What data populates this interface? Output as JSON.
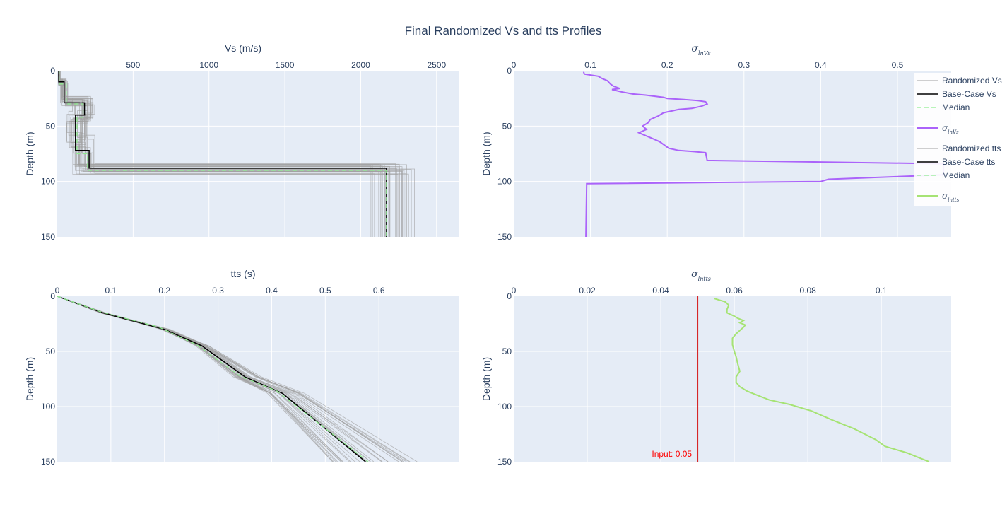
{
  "title": "Final Randomized Vs and tts Profiles",
  "colors": {
    "plot_bg": "#e5ecf6",
    "grid": "#ffffff",
    "randomized": "#a0a0a0",
    "base_case": "#000000",
    "median": "#90ee90",
    "sigma_vs": "#ab63fa",
    "sigma_tts": "#a6e374",
    "input_line": "#d62728"
  },
  "legend": {
    "items": [
      {
        "label": "Randomized Vs",
        "style": "thin-gray"
      },
      {
        "label": "Base-Case Vs",
        "style": "black"
      },
      {
        "label": "Median",
        "style": "dash-green"
      },
      {
        "label": "σ",
        "sub": "lnVs",
        "style": "purple"
      },
      {
        "label": "Randomized tts",
        "style": "thin-gray"
      },
      {
        "label": "Base-Case tts",
        "style": "black"
      },
      {
        "label": "Median",
        "style": "dash-green"
      },
      {
        "label": "σ",
        "sub": "lntts",
        "style": "green"
      }
    ]
  },
  "chart_data": [
    {
      "type": "line",
      "name": "vs_profiles",
      "xlabel": "Vs (m/s)",
      "ylabel": "Depth (m)",
      "xlim": [
        0,
        2650
      ],
      "ylim": [
        150,
        0
      ],
      "y_tick_values": [
        0,
        50,
        100,
        150
      ],
      "y_tick_labels": [
        "0",
        "50",
        "100",
        "150"
      ],
      "x_tick_values": [
        500,
        1000,
        1500,
        2000,
        2500
      ],
      "x_tick_labels": [
        "500",
        "1000",
        "1500",
        "2000",
        "2500"
      ],
      "axis_label_position": "top",
      "randomized_count": 30,
      "series": [
        {
          "name": "Base-Case Vs",
          "style": "step",
          "points": [
            [
              5,
              0
            ],
            [
              10,
              0
            ],
            [
              10,
              10
            ],
            [
              45,
              10
            ],
            [
              45,
              29
            ],
            [
              180,
              29
            ],
            [
              180,
              40
            ],
            [
              120,
              40
            ],
            [
              120,
              72
            ],
            [
              210,
              72
            ],
            [
              210,
              88
            ],
            [
              2170,
              88
            ],
            [
              2170,
              150
            ]
          ]
        },
        {
          "name": "Median",
          "style": "step",
          "points": [
            [
              5,
              0
            ],
            [
              12,
              0
            ],
            [
              12,
              12
            ],
            [
              60,
              12
            ],
            [
              60,
              30
            ],
            [
              170,
              30
            ],
            [
              170,
              42
            ],
            [
              130,
              42
            ],
            [
              130,
              75
            ],
            [
              200,
              75
            ],
            [
              200,
              90
            ],
            [
              2170,
              90
            ],
            [
              2170,
              150
            ]
          ]
        }
      ]
    },
    {
      "type": "line",
      "name": "sigma_ln_vs",
      "xlabel": "σ",
      "xlabel_sub": "lnVs",
      "ylabel": "Depth (m)",
      "xlim": [
        0,
        0.57
      ],
      "ylim": [
        150,
        0
      ],
      "y_tick_values": [
        0,
        50,
        100,
        150
      ],
      "y_tick_labels": [
        "0",
        "50",
        "100",
        "150"
      ],
      "x_tick_values": [
        0,
        0.1,
        0.2,
        0.3,
        0.4,
        0.5
      ],
      "x_tick_labels": [
        "0",
        "0.1",
        "0.2",
        "0.3",
        "0.4",
        "0.5"
      ],
      "series": [
        {
          "name": "σlnVs",
          "points": [
            [
              0.091,
              1
            ],
            [
              0.092,
              3
            ],
            [
              0.11,
              5
            ],
            [
              0.115,
              7
            ],
            [
              0.122,
              9
            ],
            [
              0.126,
              12
            ],
            [
              0.13,
              14
            ],
            [
              0.138,
              16
            ],
            [
              0.128,
              17
            ],
            [
              0.14,
              19
            ],
            [
              0.155,
              21
            ],
            [
              0.172,
              22
            ],
            [
              0.195,
              24
            ],
            [
              0.2,
              25
            ],
            [
              0.222,
              26
            ],
            [
              0.24,
              27
            ],
            [
              0.25,
              28
            ],
            [
              0.252,
              30
            ],
            [
              0.245,
              32
            ],
            [
              0.232,
              34
            ],
            [
              0.215,
              35
            ],
            [
              0.195,
              38
            ],
            [
              0.188,
              41
            ],
            [
              0.178,
              44
            ],
            [
              0.175,
              47
            ],
            [
              0.168,
              50
            ],
            [
              0.173,
              53
            ],
            [
              0.163,
              56
            ],
            [
              0.17,
              58
            ],
            [
              0.18,
              61
            ],
            [
              0.19,
              64
            ],
            [
              0.198,
              68
            ],
            [
              0.202,
              70
            ],
            [
              0.215,
              72
            ],
            [
              0.235,
              73
            ],
            [
              0.25,
              74
            ],
            [
              0.252,
              81
            ],
            [
              0.56,
              84
            ],
            [
              0.56,
              94
            ],
            [
              0.41,
              98
            ],
            [
              0.4,
              100
            ],
            [
              0.095,
              102
            ],
            [
              0.094,
              150
            ]
          ]
        }
      ]
    },
    {
      "type": "line",
      "name": "tts_profiles",
      "xlabel": "tts (s)",
      "ylabel": "Depth (m)",
      "xlim": [
        0,
        0.75
      ],
      "ylim": [
        150,
        0
      ],
      "y_tick_values": [
        0,
        50,
        100,
        150
      ],
      "y_tick_labels": [
        "0",
        "50",
        "100",
        "150"
      ],
      "x_tick_values": [
        0,
        0.1,
        0.2,
        0.3,
        0.4,
        0.5,
        0.6
      ],
      "x_tick_labels": [
        "0",
        "0.1",
        "0.2",
        "0.3",
        "0.4",
        "0.5",
        "0.6"
      ],
      "axis_label_position": "top",
      "randomized_count": 30,
      "series": [
        {
          "name": "Base-Case tts",
          "points": [
            [
              0,
              0
            ],
            [
              0.085,
              15
            ],
            [
              0.2,
              30
            ],
            [
              0.27,
              45
            ],
            [
              0.35,
              73
            ],
            [
              0.42,
              88
            ],
            [
              0.575,
              150
            ]
          ]
        },
        {
          "name": "Median",
          "points": [
            [
              0,
              0
            ],
            [
              0.08,
              14
            ],
            [
              0.19,
              28
            ],
            [
              0.26,
              44
            ],
            [
              0.34,
              72
            ],
            [
              0.41,
              86
            ],
            [
              0.58,
              150
            ]
          ]
        }
      ]
    },
    {
      "type": "line",
      "name": "sigma_ln_tts",
      "xlabel": "σ",
      "xlabel_sub": "lntts",
      "ylabel": "Depth (m)",
      "xlim": [
        0,
        0.119
      ],
      "ylim": [
        150,
        0
      ],
      "y_tick_values": [
        0,
        50,
        100,
        150
      ],
      "y_tick_labels": [
        "0",
        "50",
        "100",
        "150"
      ],
      "x_tick_values": [
        0,
        0.02,
        0.04,
        0.06,
        0.08,
        0.1
      ],
      "x_tick_labels": [
        "0",
        "0.02",
        "0.04",
        "0.06",
        "0.08",
        "0.1"
      ],
      "input_line": {
        "x": 0.05,
        "label": "Input: 0.05"
      },
      "series": [
        {
          "name": "σlntts",
          "points": [
            [
              0.0545,
              2
            ],
            [
              0.0575,
              5
            ],
            [
              0.0585,
              8
            ],
            [
              0.058,
              12
            ],
            [
              0.058,
              15
            ],
            [
              0.06,
              18
            ],
            [
              0.061,
              20
            ],
            [
              0.0625,
              22
            ],
            [
              0.0615,
              24
            ],
            [
              0.063,
              26
            ],
            [
              0.0625,
              28
            ],
            [
              0.0615,
              31
            ],
            [
              0.0605,
              34
            ],
            [
              0.0595,
              38
            ],
            [
              0.0595,
              44
            ],
            [
              0.06,
              50
            ],
            [
              0.0605,
              55
            ],
            [
              0.061,
              62
            ],
            [
              0.0615,
              68
            ],
            [
              0.0605,
              73
            ],
            [
              0.0605,
              78
            ],
            [
              0.0615,
              82
            ],
            [
              0.0635,
              86
            ],
            [
              0.0665,
              90
            ],
            [
              0.0695,
              94
            ],
            [
              0.075,
              98
            ],
            [
              0.081,
              104
            ],
            [
              0.0865,
              112
            ],
            [
              0.0925,
              120
            ],
            [
              0.0985,
              130
            ],
            [
              0.101,
              136
            ],
            [
              0.107,
              142
            ],
            [
              0.11,
              146
            ],
            [
              0.113,
              150
            ]
          ]
        }
      ]
    }
  ]
}
